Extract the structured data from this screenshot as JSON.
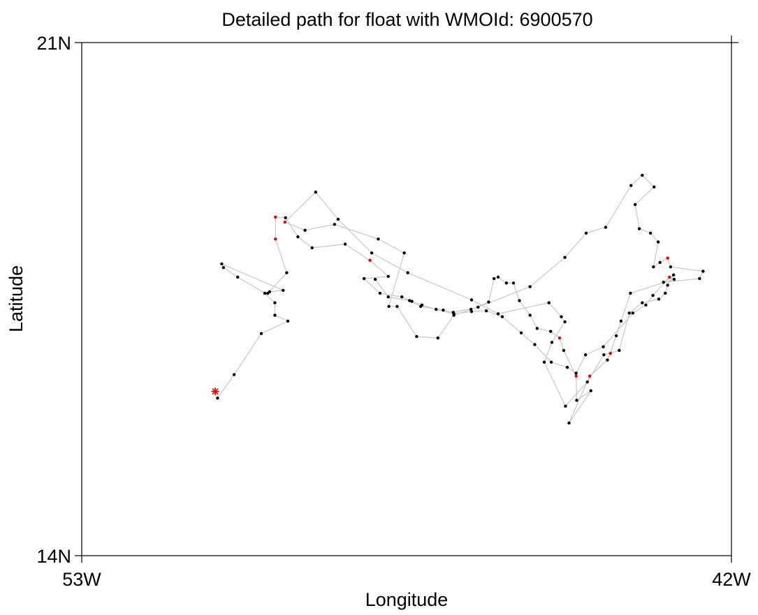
{
  "chart_data": {
    "type": "scatter",
    "title": "Detailed path for float with WMOId: 6900570",
    "xlabel": "Longitude",
    "ylabel": "Latitude",
    "xlim": [
      -53,
      -42
    ],
    "ylim": [
      14,
      21
    ],
    "x_tick_labels": [
      {
        "value": -53,
        "label": "53W"
      },
      {
        "value": -42,
        "label": "42W"
      }
    ],
    "y_tick_labels": [
      {
        "value": 14,
        "label": "14N"
      },
      {
        "value": 21,
        "label": "21N"
      }
    ],
    "grid": false,
    "colors": {
      "path_line": "#c8c8c8",
      "profile_point": "#000000",
      "highlight_point": "#dd0000",
      "start_marker": "#dd0000"
    },
    "start_marker": {
      "lon": -50.74,
      "lat": 16.24,
      "symbol": "asterisk"
    },
    "path": [
      [
        -50.7,
        16.15
      ],
      [
        -50.42,
        16.47
      ],
      [
        -49.96,
        17.03
      ],
      [
        -49.51,
        17.2
      ],
      [
        -49.73,
        17.28
      ],
      [
        -49.73,
        17.45
      ],
      [
        -49.9,
        17.58
      ],
      [
        -50.36,
        17.8
      ],
      [
        -50.6,
        17.93
      ],
      [
        -50.63,
        17.98
      ],
      [
        -49.59,
        17.62
      ],
      [
        -49.82,
        17.6
      ],
      [
        -49.85,
        17.58
      ],
      [
        -49.53,
        17.86
      ],
      [
        -49.72,
        18.32
      ],
      [
        -49.72,
        18.62
      ],
      [
        -49.55,
        18.61
      ],
      [
        -49.34,
        18.35
      ],
      [
        -49.1,
        18.2
      ],
      [
        -48.54,
        18.25
      ],
      [
        -48.12,
        18.03
      ],
      [
        -47.81,
        17.81
      ],
      [
        -48.22,
        17.78
      ],
      [
        -47.95,
        17.58
      ],
      [
        -47.58,
        17.53
      ],
      [
        -47.41,
        17.47
      ],
      [
        -47.24,
        17.42
      ],
      [
        -47.0,
        17.36
      ],
      [
        -46.7,
        17.3
      ],
      [
        -46.4,
        17.33
      ],
      [
        -46.15,
        17.34
      ],
      [
        -45.88,
        17.26
      ],
      [
        -45.56,
        17.04
      ],
      [
        -45.33,
        16.88
      ],
      [
        -45.05,
        16.64
      ],
      [
        -44.78,
        16.57
      ],
      [
        -44.63,
        16.49
      ],
      [
        -44.47,
        16.74
      ],
      [
        -44.17,
        16.85
      ],
      [
        -43.67,
        17.31
      ],
      [
        -43.45,
        17.42
      ],
      [
        -43.33,
        17.55
      ],
      [
        -43.05,
        17.8
      ],
      [
        -42.97,
        17.77
      ],
      [
        -43.71,
        17.58
      ],
      [
        -43.87,
        17.2
      ],
      [
        -43.95,
        17.0
      ],
      [
        -44.05,
        16.76
      ],
      [
        -44.1,
        16.67
      ],
      [
        -44.4,
        16.45
      ],
      [
        -44.75,
        15.81
      ],
      [
        -44.38,
        16.25
      ],
      [
        -44.62,
        16.12
      ],
      [
        -44.63,
        16.45
      ],
      [
        -44.84,
        16.8
      ],
      [
        -44.91,
        16.97
      ],
      [
        -45.06,
        17.06
      ],
      [
        -45.29,
        17.1
      ],
      [
        -45.41,
        17.28
      ],
      [
        -45.59,
        17.48
      ],
      [
        -45.69,
        17.72
      ],
      [
        -45.81,
        17.72
      ],
      [
        -45.95,
        17.8
      ],
      [
        -46.02,
        17.78
      ],
      [
        -46.11,
        17.46
      ],
      [
        -46.41,
        17.36
      ],
      [
        -46.7,
        17.28
      ],
      [
        -46.97,
        16.97
      ],
      [
        -47.33,
        16.99
      ],
      [
        -47.66,
        17.4
      ],
      [
        -47.8,
        17.4
      ],
      [
        -47.54,
        18.13
      ],
      [
        -47.98,
        18.32
      ],
      [
        -48.72,
        18.52
      ],
      [
        -49.22,
        18.44
      ],
      [
        -49.56,
        18.55
      ],
      [
        -49.04,
        18.96
      ],
      [
        -48.66,
        18.59
      ],
      [
        -48.09,
        18.13
      ],
      [
        -47.48,
        17.86
      ],
      [
        -46.4,
        17.49
      ],
      [
        -45.95,
        17.3
      ],
      [
        -45.09,
        17.45
      ],
      [
        -44.88,
        17.26
      ],
      [
        -44.82,
        17.19
      ],
      [
        -45.04,
        16.91
      ],
      [
        -45.17,
        16.64
      ],
      [
        -44.81,
        16.04
      ],
      [
        -44.44,
        16.37
      ],
      [
        -44.16,
        16.74
      ],
      [
        -43.9,
        16.8
      ],
      [
        -43.73,
        17.31
      ],
      [
        -43.51,
        17.45
      ],
      [
        -43.23,
        17.5
      ],
      [
        -43.12,
        17.58
      ],
      [
        -43.08,
        17.69
      ],
      [
        -42.98,
        17.83
      ],
      [
        -43.15,
        17.73
      ],
      [
        -42.54,
        17.78
      ],
      [
        -42.48,
        17.88
      ],
      [
        -43.03,
        17.94
      ],
      [
        -43.08,
        18.06
      ],
      [
        -43.21,
        18.0
      ],
      [
        -43.32,
        17.94
      ],
      [
        -43.24,
        18.28
      ],
      [
        -43.37,
        18.4
      ],
      [
        -43.56,
        18.46
      ],
      [
        -43.63,
        18.79
      ],
      [
        -43.31,
        19.03
      ],
      [
        -43.51,
        19.19
      ],
      [
        -43.7,
        19.05
      ],
      [
        -44.13,
        18.48
      ],
      [
        -44.46,
        18.4
      ],
      [
        -44.82,
        18.07
      ],
      [
        -45.41,
        17.67
      ],
      [
        -46.29,
        17.39
      ],
      [
        -46.71,
        17.32
      ],
      [
        -46.88,
        17.35
      ],
      [
        -47.26,
        17.4
      ],
      [
        -47.45,
        17.48
      ],
      [
        -47.81,
        17.53
      ],
      [
        -48.03,
        17.77
      ]
    ],
    "highlighted_indices": [
      14,
      15,
      20,
      42,
      47,
      49,
      53,
      55,
      75,
      101
    ]
  }
}
